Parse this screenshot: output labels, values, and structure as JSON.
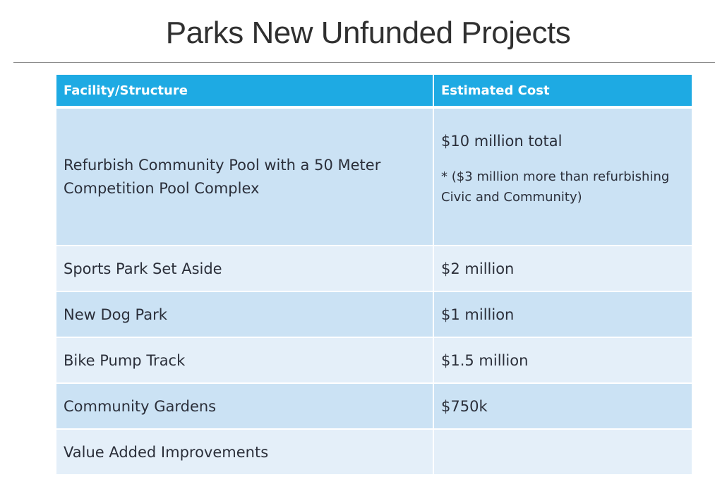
{
  "title": "Parks New Unfunded Projects",
  "table": {
    "headers": [
      "Facility/Structure",
      "Estimated Cost"
    ],
    "rows": [
      {
        "facility": "Refurbish Community Pool with a 50 Meter Competition Pool Complex",
        "cost": "$10 million total",
        "note": "* ($3 million more than refurbishing Civic and Community)"
      },
      {
        "facility": "Sports Park Set Aside",
        "cost": "$2 million"
      },
      {
        "facility": "New Dog Park",
        "cost": "$1 million"
      },
      {
        "facility": "Bike Pump Track",
        "cost": "$1.5 million"
      },
      {
        "facility": "Community Gardens",
        "cost": "$750k"
      },
      {
        "facility": "Value Added Improvements",
        "cost": ""
      }
    ]
  },
  "colors": {
    "header_bg": "#1eaae3",
    "row_dark": "#cbe2f4",
    "row_light": "#e4eff9",
    "text": "#2b2f3a"
  }
}
